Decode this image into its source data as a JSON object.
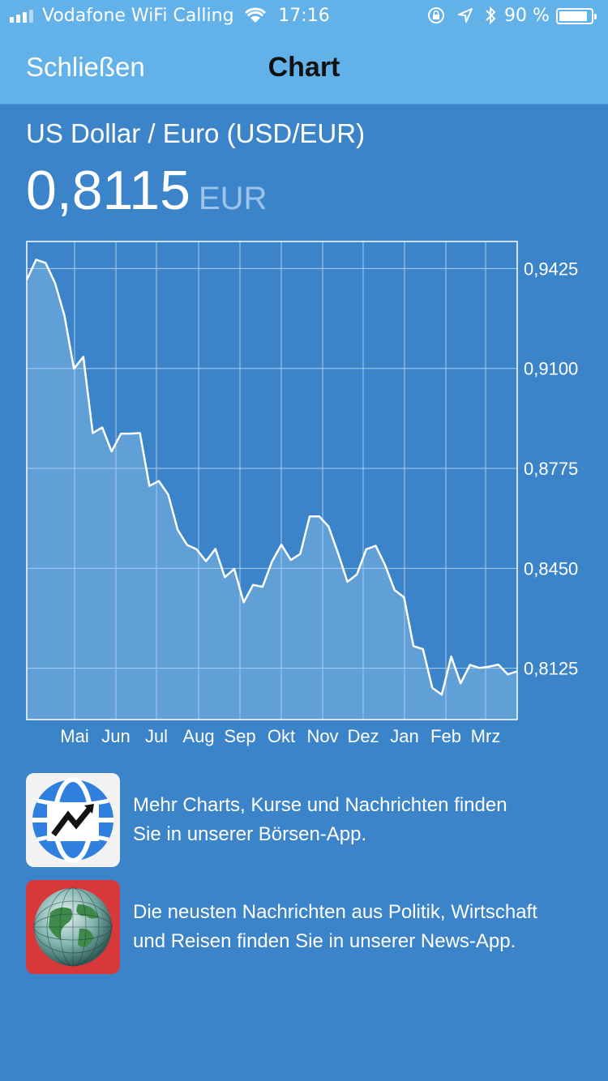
{
  "status_bar": {
    "carrier": "Vodafone WiFi Calling",
    "time": "17:16",
    "battery_pct": "90 %",
    "battery_level": 0.9,
    "icons": [
      "signal-icon",
      "wifi-icon",
      "rotation-lock-icon",
      "location-icon",
      "bluetooth-icon",
      "battery-icon"
    ]
  },
  "nav": {
    "back_label": "Schließen",
    "title": "Chart"
  },
  "quote": {
    "pair": "US Dollar / Euro (USD/EUR)",
    "value": "0,8115",
    "unit": "EUR"
  },
  "chart_data": {
    "type": "area",
    "title": "",
    "xlabel": "",
    "ylabel": "",
    "y_ticks": [
      "0,9425",
      "0,9100",
      "0,8775",
      "0,8450",
      "0,8125"
    ],
    "y_tick_values": [
      0.9425,
      0.91,
      0.8775,
      0.845,
      0.8125
    ],
    "x_ticks": [
      "Mai",
      "Jun",
      "Jul",
      "Aug",
      "Sep",
      "Okt",
      "Nov",
      "Dez",
      "Jan",
      "Feb",
      "Mrz"
    ],
    "ylim": [
      0.7958,
      0.9513
    ],
    "grid": true,
    "colors": {
      "line": "#ffffff",
      "fill": "#6ea8db",
      "grid": "#a9cbee"
    },
    "series": [
      {
        "values": [
          0.9388,
          0.9454,
          0.9443,
          0.9378,
          0.9272,
          0.9099,
          0.9138,
          0.889,
          0.8908,
          0.883,
          0.8888,
          0.8888,
          0.889,
          0.8718,
          0.8734,
          0.869,
          0.8575,
          0.8526,
          0.8512,
          0.8473,
          0.8513,
          0.8421,
          0.8448,
          0.8339,
          0.8396,
          0.839,
          0.8472,
          0.8527,
          0.8477,
          0.8497,
          0.8619,
          0.8619,
          0.8586,
          0.85,
          0.8406,
          0.843,
          0.8512,
          0.8523,
          0.846,
          0.8379,
          0.8356,
          0.8197,
          0.8187,
          0.8061,
          0.8039,
          0.8163,
          0.8076,
          0.8136,
          0.8126,
          0.813,
          0.8137,
          0.8105,
          0.8115
        ]
      }
    ]
  },
  "promos": [
    {
      "icon": "boerse-app-icon",
      "text_line1": "Mehr Charts, Kurse und Nachrichten finden",
      "text_line2": "Sie in unserer Börsen-App."
    },
    {
      "icon": "news-app-globe-icon",
      "text_line1": "Die neusten Nachrichten aus Politik, Wirtschaft",
      "text_line2": "und Reisen finden Sie in unserer News-App."
    }
  ]
}
